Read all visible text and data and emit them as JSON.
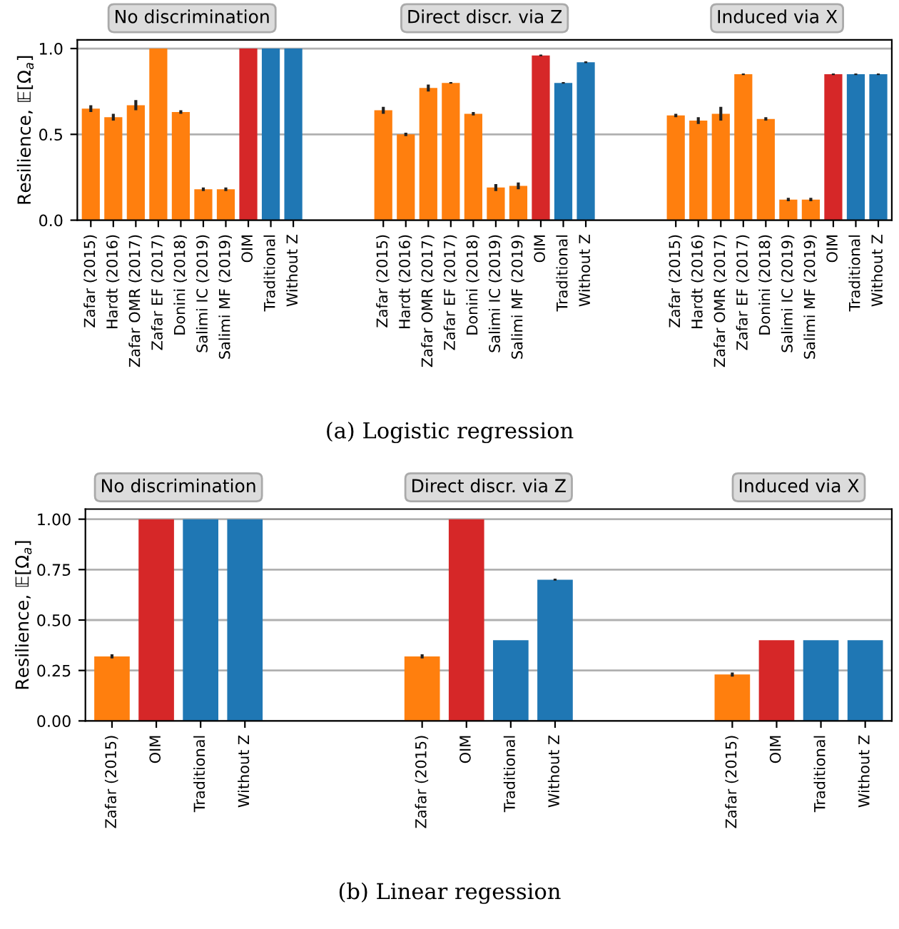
{
  "chart_data": [
    {
      "type": "bar",
      "xlabel": "(a) Logistic regression",
      "ylabel": "Resilience, 𝔼[Ω$_{a}$]",
      "categories": [
        "Zafar (2015)",
        "Hardt (2016)",
        "Zafar OMR (2017)",
        "Zafar EF (2017)",
        "Donini (2018)",
        "Salimi IC (2019)",
        "Salimi MF (2019)",
        "OIM",
        "Traditional",
        "Without Z",
        null,
        null,
        null,
        "Zafar (2015)",
        "Hardt (2016)",
        "Zafar OMR (2017)",
        "Zafar EF (2017)",
        "Donini (2018)",
        "Salimi IC (2019)",
        "Salimi MF (2019)",
        "OIM",
        "Traditional",
        "Without Z",
        null,
        null,
        null,
        "Zafar (2015)",
        "Hardt (2016)",
        "Zafar OMR (2017)",
        "Zafar EF (2017)",
        "Donini (2018)",
        "Salimi IC (2019)",
        "Salimi MF (2019)",
        "OIM",
        "Traditional",
        "Without Z"
      ],
      "values": [
        0.65,
        0.6,
        0.67,
        1.0,
        0.63,
        0.18,
        0.18,
        1.0,
        1.0,
        1.0,
        null,
        null,
        null,
        0.64,
        0.5,
        0.77,
        0.8,
        0.62,
        0.19,
        0.2,
        0.96,
        0.8,
        0.92,
        null,
        null,
        null,
        0.61,
        0.58,
        0.62,
        0.85,
        0.59,
        0.12,
        0.12,
        0.85,
        0.85,
        0.85
      ],
      "errors": [
        0.02,
        0.02,
        0.03,
        null,
        0.01,
        0.01,
        0.01,
        null,
        null,
        null,
        null,
        null,
        null,
        0.02,
        0.01,
        0.02,
        0.005,
        0.01,
        0.02,
        0.02,
        0.005,
        0.005,
        0.005,
        null,
        null,
        null,
        0.01,
        0.02,
        0.04,
        0.005,
        0.01,
        0.01,
        0.01,
        0.005,
        0.005,
        0.005
      ],
      "colors": [
        "#ff7f0e",
        "#ff7f0e",
        "#ff7f0e",
        "#ff7f0e",
        "#ff7f0e",
        "#ff7f0e",
        "#ff7f0e",
        "#d62728",
        "#1f77b4",
        "#1f77b4",
        null,
        null,
        null,
        "#ff7f0e",
        "#ff7f0e",
        "#ff7f0e",
        "#ff7f0e",
        "#ff7f0e",
        "#ff7f0e",
        "#ff7f0e",
        "#d62728",
        "#1f77b4",
        "#1f77b4",
        null,
        null,
        null,
        "#ff7f0e",
        "#ff7f0e",
        "#ff7f0e",
        "#ff7f0e",
        "#ff7f0e",
        "#ff7f0e",
        "#ff7f0e",
        "#d62728",
        "#1f77b4",
        "#1f77b4"
      ],
      "annotations": [
        "No discrimination",
        "Direct discr. via Z",
        "Induced via X"
      ],
      "ylim": [
        0,
        1.05
      ],
      "yticks": [
        {
          "value": 0,
          "label": "0.0"
        },
        0.5,
        {
          "value": 1,
          "label": "1.0"
        }
      ],
      "grid": "y"
    },
    {
      "type": "bar",
      "xlabel": "(b) Linear regession",
      "ylabel": "Resilience, 𝔼[Ω$_{a}$]",
      "categories": [
        "Zafar (2015)",
        "OIM",
        "Traditional",
        "Without Z",
        null,
        null,
        null,
        "Zafar (2015)",
        "OIM",
        "Traditional",
        "Without Z",
        null,
        null,
        null,
        "Zafar (2015)",
        "OIM",
        "Traditional",
        "Without Z"
      ],
      "values": [
        0.32,
        1.0,
        1.0,
        1.0,
        null,
        null,
        null,
        0.32,
        1.0,
        0.4,
        0.7,
        null,
        null,
        null,
        0.23,
        0.4,
        0.4,
        0.4
      ],
      "errors": [
        0.01,
        null,
        null,
        null,
        null,
        null,
        null,
        0.01,
        null,
        null,
        0.005,
        null,
        null,
        null,
        0.01,
        null,
        null,
        null
      ],
      "colors": [
        "#ff7f0e",
        "#d62728",
        "#1f77b4",
        "#1f77b4",
        null,
        null,
        null,
        "#ff7f0e",
        "#d62728",
        "#1f77b4",
        "#1f77b4",
        null,
        null,
        null,
        "#ff7f0e",
        "#d62728",
        "#1f77b4",
        "#1f77b4"
      ],
      "annotations": [
        "No discrimination",
        "Direct discr. via Z",
        "Induced via X"
      ],
      "ylim": [
        0,
        1.05
      ],
      "yticks": [
        {
          "value": 0,
          "label": "0.00"
        },
        0.25,
        {
          "value": 0.5,
          "label": "0.50"
        },
        0.75,
        {
          "value": 1,
          "label": "1.00"
        }
      ],
      "grid": "y"
    }
  ]
}
